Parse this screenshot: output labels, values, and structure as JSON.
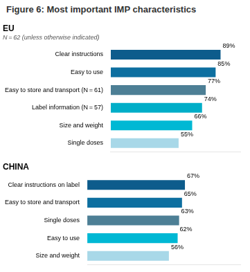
{
  "title": "Figure 6: Most important IMP characteristics",
  "chart_data": [
    {
      "type": "bar",
      "orientation": "horizontal",
      "title": "EU",
      "subtitle": "N = 62 (unless otherwise indicated)",
      "categories": [
        "Clear instructions",
        "Easy to use",
        "Easy to store and transport (N = 61)",
        "Label information (N = 57)",
        "Size and weight",
        "Single doses"
      ],
      "values": [
        89,
        85,
        77,
        74,
        66,
        55
      ],
      "value_labels": [
        "89%",
        "85%",
        "77%",
        "74%",
        "66%",
        "55%"
      ],
      "colors": [
        "#0d5c8c",
        "#0d6fa0",
        "#4d7f95",
        "#00aec8",
        "#00b8d4",
        "#a8d8e8"
      ],
      "data_labels": true,
      "xlim": [
        0,
        105
      ],
      "tick_labels": "y",
      "grid": false
    },
    {
      "type": "bar",
      "orientation": "horizontal",
      "title": "CHINA",
      "categories": [
        "Clear instructions on label",
        "Easy to store and transport",
        "Single doses",
        "Easy to use",
        "Size and weight"
      ],
      "values": [
        67,
        65,
        63,
        62,
        56
      ],
      "value_labels": [
        "67%",
        "65%",
        "63%",
        "62%",
        "56%"
      ],
      "colors": [
        "#0d5c8c",
        "#0d6fa0",
        "#4d7f95",
        "#00b8d4",
        "#a8d8e8"
      ],
      "data_labels": true,
      "xlim": [
        0,
        105
      ],
      "tick_labels": "y",
      "grid": false
    }
  ]
}
